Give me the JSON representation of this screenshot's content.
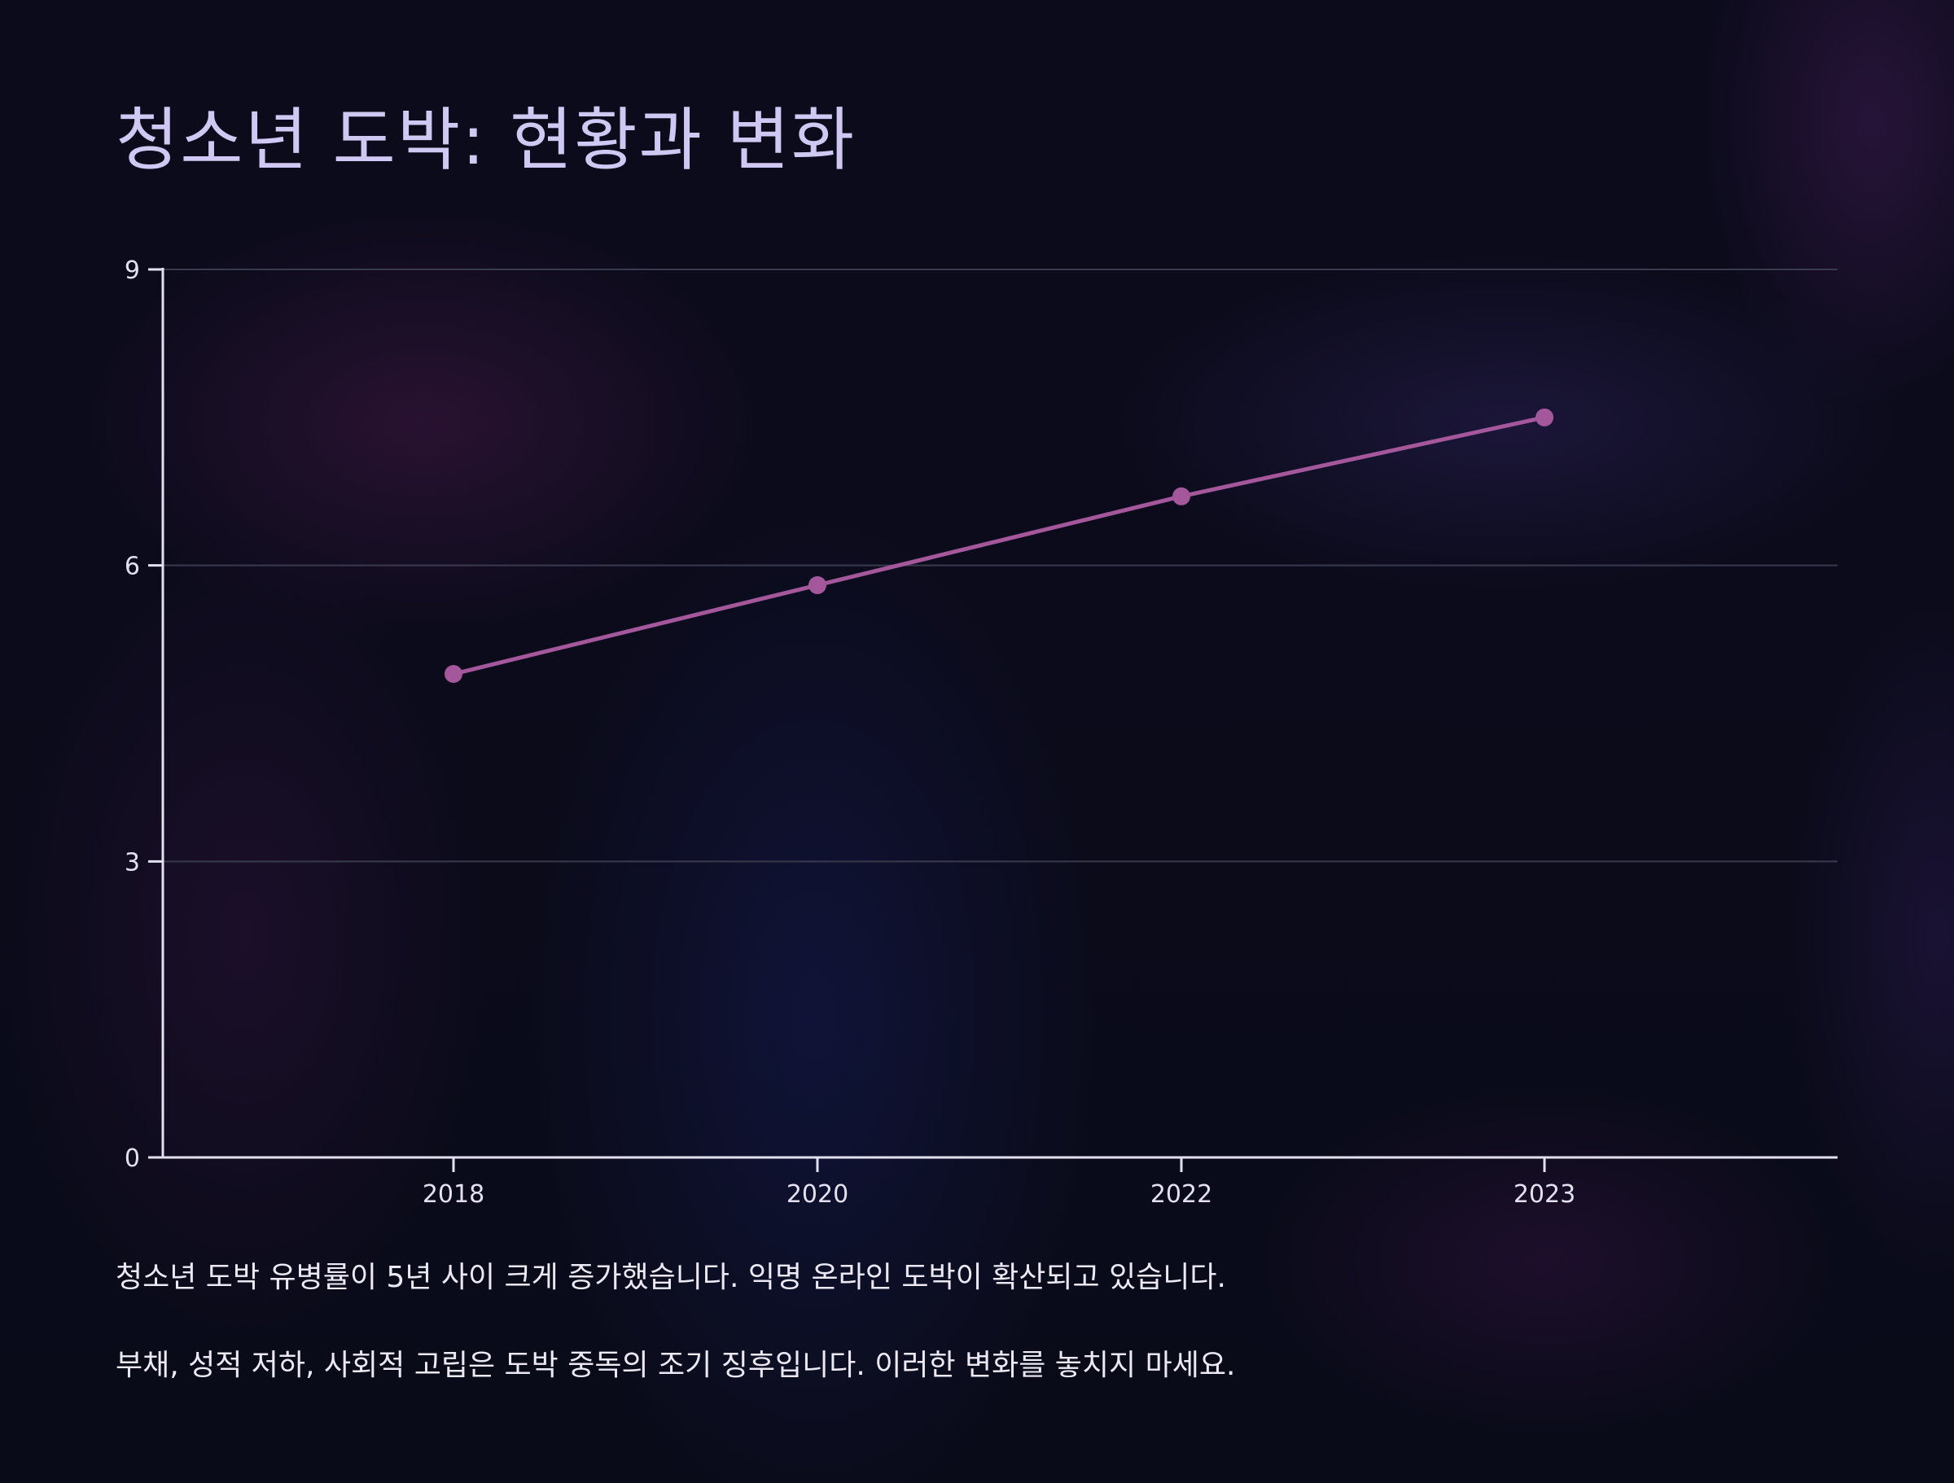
{
  "title": "청소년 도박: 현황과 변화",
  "notes": [
    "청소년 도박 유병률이 5년 사이 크게 증가했습니다. 익명 온라인 도박이 확산되고 있습니다.",
    "부채, 성적 저하, 사회적 고립은 도박 중독의 조기 징후입니다. 이러한 변화를 놓치지 마세요."
  ],
  "colors": {
    "line": "#a4589b",
    "point": "#a4589b",
    "axis": "#e3e0f0",
    "grid": "#3a3a4e",
    "title": "#cfc8f2"
  },
  "chart_data": {
    "type": "line",
    "title": "청소년 도박: 현황과 변화",
    "xlabel": "",
    "ylabel": "",
    "x": [
      "2018",
      "2020",
      "2022",
      "2023"
    ],
    "y": [
      4.9,
      5.8,
      6.7,
      7.5
    ],
    "ylim": [
      0,
      9
    ],
    "yticks": [
      "0",
      "3",
      "6",
      "9"
    ],
    "grid": true,
    "legend": "none"
  }
}
